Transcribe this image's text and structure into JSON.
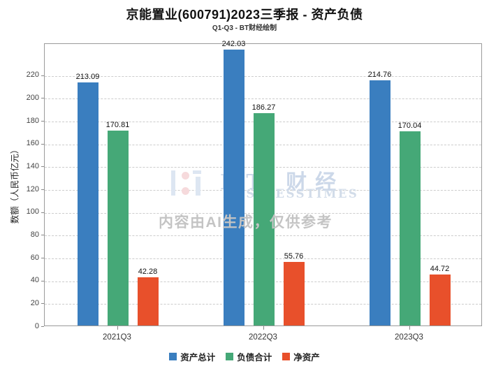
{
  "chart_data": {
    "type": "bar",
    "title": "京能置业(600791)2023三季报 - 资产负债",
    "subtitle": "Q1-Q3 - BT财经绘制",
    "categories": [
      "2021Q3",
      "2022Q3",
      "2023Q3"
    ],
    "series": [
      {
        "name": "资产总计",
        "color": "#3A7EBF",
        "values": [
          213.09,
          242.03,
          214.76
        ]
      },
      {
        "name": "负债合计",
        "color": "#45A877",
        "values": [
          170.81,
          186.27,
          170.04
        ]
      },
      {
        "name": "净资产",
        "color": "#E8502B",
        "values": [
          42.28,
          55.76,
          44.72
        ]
      }
    ],
    "ylabel": "数额（人民币亿元）",
    "xlabel": "",
    "ylim": [
      0,
      248
    ],
    "ytick_step": 20,
    "grid": "horizontal-dashed",
    "legend_position": "bottom"
  },
  "watermark": {
    "logo_text": "BT 财经",
    "logo_subtext": "BUSINESSTIMES",
    "notice": "内容由AI生成，仅供参考"
  }
}
